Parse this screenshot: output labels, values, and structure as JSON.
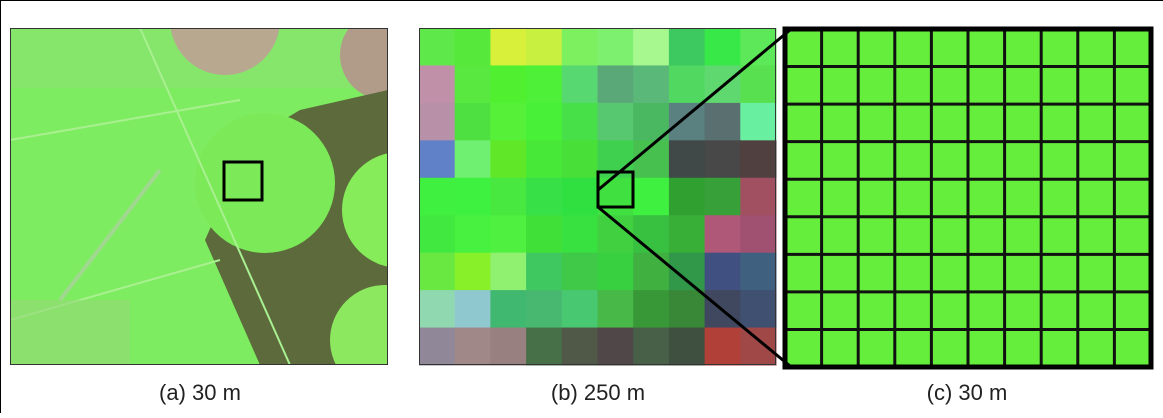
{
  "panels": [
    {
      "caption": "(a) 30 m"
    },
    {
      "caption": "(b) 250 m"
    },
    {
      "caption": "(c) 30 m"
    }
  ]
}
